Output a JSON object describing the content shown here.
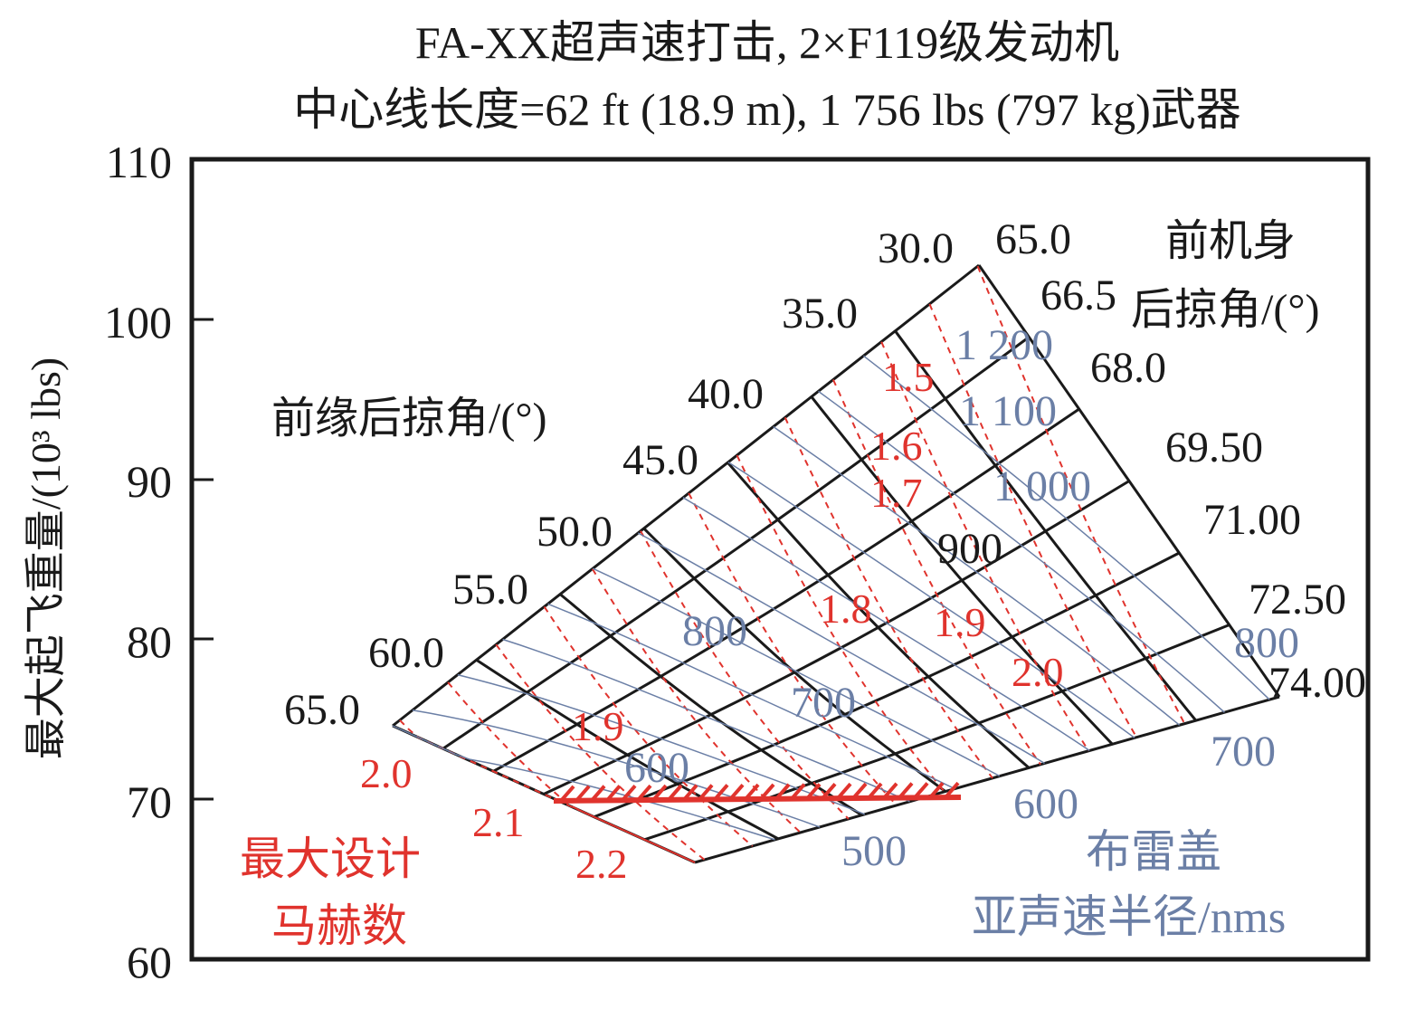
{
  "chart_data": {
    "type": "carpet",
    "title": [
      "FA-XX超声速打击, 2×F119级发动机",
      "中心线长度=62 ft (18.9 m), 1 756 lbs (797 kg)武器"
    ],
    "ylabel": "最大起飞重量/(10³ lbs)",
    "ylim": [
      60,
      110
    ],
    "yticks": [
      "110",
      "100",
      "90",
      "80",
      "70",
      "60"
    ],
    "grid": false,
    "leading_edge_sweep": {
      "label": "前缘后掠角/(°)",
      "values": [
        "30.0",
        "35.0",
        "40.0",
        "45.0",
        "50.0",
        "55.0",
        "60.0",
        "65.0"
      ]
    },
    "forebody_sweep": {
      "label": [
        "前机身",
        "后掠角/(°)"
      ],
      "values": [
        "65.0",
        "66.5",
        "68.0",
        "69.50",
        "71.00",
        "72.50",
        "74.00"
      ]
    },
    "max_design_mach": {
      "label": [
        "最大设计",
        "马赫数"
      ],
      "values": [
        "1.5",
        "1.6",
        "1.7",
        "1.8",
        "1.9",
        "2.0",
        "1.9",
        "2.0",
        "2.1",
        "2.2"
      ]
    },
    "breguet_subsonic_radius": {
      "label": [
        "布雷盖",
        "亚声速半径/nms"
      ],
      "values": [
        "1 200",
        "1 100",
        "1 000",
        "900",
        "800",
        "700",
        "600",
        "500",
        "800",
        "700",
        "600"
      ]
    },
    "design_line_weight": 70
  },
  "colors": {
    "axis": "#1a1a1a",
    "grid": "#1a1a1a",
    "mach": "#e0332d",
    "radius": "#6b7fa6"
  }
}
